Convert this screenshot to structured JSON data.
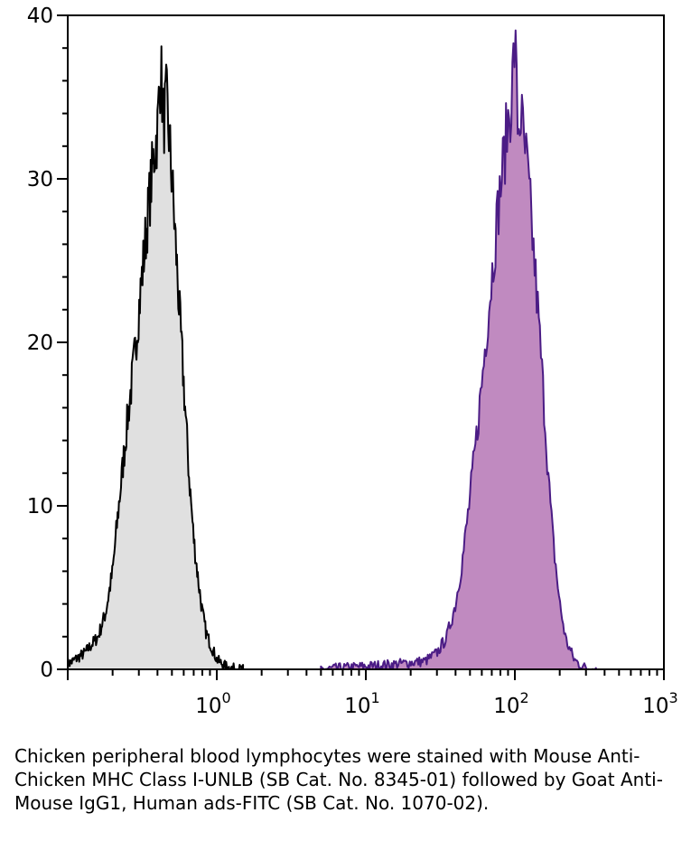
{
  "chart_data": {
    "type": "area",
    "xscale": "log",
    "xlim": [
      0.1,
      1000
    ],
    "ylim": [
      0,
      40
    ],
    "xlabel": "",
    "ylabel": "",
    "title": "",
    "x_ticks": [
      {
        "value": 1,
        "label_base": "10",
        "label_exp": "0"
      },
      {
        "value": 10,
        "label_base": "10",
        "label_exp": "1"
      },
      {
        "value": 100,
        "label_base": "10",
        "label_exp": "2"
      },
      {
        "value": 1000,
        "label_base": "10",
        "label_exp": "3"
      }
    ],
    "y_ticks": [
      "0",
      "10",
      "20",
      "30",
      "40"
    ],
    "series": [
      {
        "fill": "#e0e0e0",
        "stroke": "#000000",
        "x": [
          0.1,
          0.13,
          0.16,
          0.18,
          0.2,
          0.22,
          0.25,
          0.28,
          0.3,
          0.33,
          0.36,
          0.38,
          0.4,
          0.42,
          0.44,
          0.46,
          0.48,
          0.5,
          0.53,
          0.56,
          0.6,
          0.65,
          0.7,
          0.75,
          0.8,
          0.85,
          0.9,
          0.95,
          1.0,
          1.1,
          1.2,
          1.5
        ],
        "y": [
          0.3,
          1.0,
          2.0,
          3.5,
          6.0,
          10.0,
          15.0,
          19.0,
          22.0,
          26.0,
          29.5,
          31.5,
          33.0,
          37.0,
          33.5,
          34.8,
          32.5,
          30.0,
          26.0,
          22.0,
          17.5,
          12.0,
          8.0,
          5.5,
          3.5,
          2.2,
          1.6,
          1.1,
          0.6,
          0.3,
          0.1,
          0.0
        ]
      },
      {
        "fill": "#c08ac0",
        "stroke": "#4b1c85",
        "x": [
          5,
          15,
          25,
          30,
          35,
          40,
          45,
          50,
          55,
          60,
          65,
          70,
          75,
          80,
          85,
          90,
          95,
          100,
          105,
          110,
          115,
          120,
          130,
          140,
          150,
          160,
          170,
          180,
          200,
          220,
          250,
          280,
          300,
          350
        ],
        "y": [
          0.0,
          0.3,
          0.5,
          1.0,
          2.0,
          4.0,
          7.0,
          10.5,
          14.0,
          17.5,
          21.0,
          24.0,
          27.0,
          29.5,
          31.5,
          33.5,
          35.0,
          38.5,
          33.0,
          34.0,
          32.0,
          31.0,
          27.0,
          23.0,
          19.0,
          15.0,
          11.0,
          8.0,
          4.0,
          1.8,
          0.6,
          0.2,
          0.1,
          0.0
        ]
      }
    ]
  },
  "caption": "Chicken peripheral blood lymphocytes were stained with Mouse Anti-Chicken MHC Class I-UNLB (SB Cat. No. 8345-01) followed by Goat Anti-Mouse IgG1, Human ads-FITC (SB Cat. No. 1070-02)."
}
